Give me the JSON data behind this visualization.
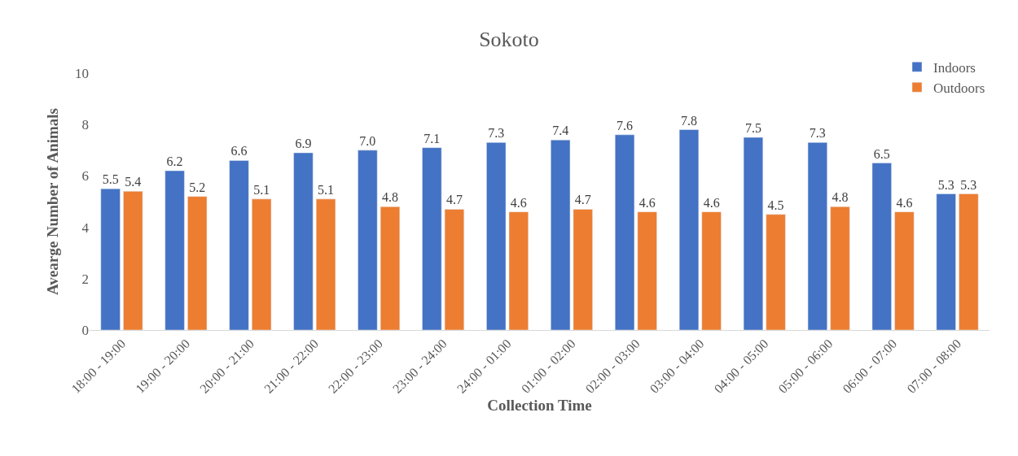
{
  "chart_data": {
    "type": "bar",
    "title": "Sokoto",
    "xlabel": "Collection Time",
    "ylabel": "Avearge Number of Animals",
    "categories": [
      "18:00 - 19:00",
      "19:00 - 20:00",
      "20:00 - 21:00",
      "21:00 - 22:00",
      "22:00 - 23:00",
      "23:00 - 24:00",
      "24:00 - 01:00",
      "01:00 - 02:00",
      "02:00 - 03:00",
      "03:00 - 04:00",
      "04:00 - 05:00",
      "05:00 - 06:00",
      "06:00 - 07:00",
      "07:00 - 08:00"
    ],
    "series": [
      {
        "name": "Indoors",
        "color": "#4472c4",
        "values": [
          5.5,
          6.2,
          6.6,
          6.9,
          7.0,
          7.1,
          7.3,
          7.4,
          7.6,
          7.8,
          7.5,
          7.3,
          6.5,
          5.3
        ],
        "value_labels": [
          "5.5",
          "6.2",
          "6.6",
          "6.9",
          "7.0",
          "7.1",
          "7.3",
          "7.4",
          "7.6",
          "7.8",
          "7.5",
          "7.3",
          "6.5",
          "5.3"
        ]
      },
      {
        "name": "Outdoors",
        "color": "#ed7d31",
        "values": [
          5.4,
          5.2,
          5.1,
          5.1,
          4.8,
          4.7,
          4.6,
          4.7,
          4.6,
          4.6,
          4.5,
          4.8,
          4.6,
          5.3
        ],
        "value_labels": [
          "5.4",
          "5.2",
          "5.1",
          "5.1",
          "4.8",
          "4.7",
          "4.6",
          "4.7",
          "4.6",
          "4.6",
          "4.5",
          "4.8",
          "4.6",
          "5.3"
        ]
      }
    ],
    "ylim": [
      0,
      10
    ],
    "yticks": [
      0,
      2,
      4,
      6,
      8,
      10
    ],
    "grid": false,
    "legend": "top right"
  }
}
